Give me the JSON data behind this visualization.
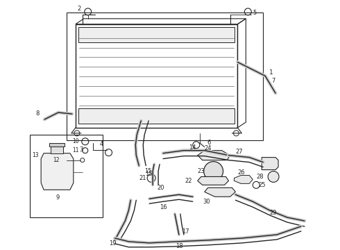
{
  "bg_color": "#ffffff",
  "line_color": "#222222",
  "figsize": [
    4.9,
    3.6
  ],
  "dpi": 100,
  "xlim": [
    0,
    490
  ],
  "ylim": [
    0,
    360
  ]
}
